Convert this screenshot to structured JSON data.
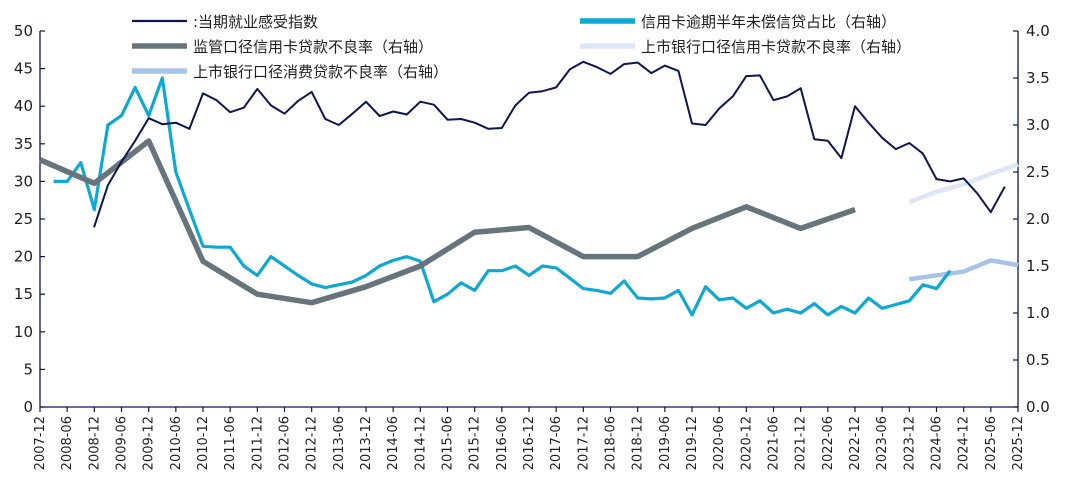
{
  "chart_data": {
    "type": "line",
    "xlabel": "",
    "ylabel": "",
    "y2label": "",
    "x_ticks": [
      "2007-12",
      "2008-06",
      "2008-12",
      "2009-06",
      "2009-12",
      "2010-06",
      "2010-12",
      "2011-06",
      "2011-12",
      "2012-06",
      "2012-12",
      "2013-06",
      "2013-12",
      "2014-06",
      "2014-12",
      "2015-06",
      "2015-12",
      "2016-06",
      "2016-12",
      "2017-06",
      "2017-12",
      "2018-06",
      "2018-12",
      "2019-06",
      "2019-12",
      "2020-06",
      "2020-12",
      "2021-06",
      "2021-12",
      "2022-06",
      "2022-12",
      "2023-06",
      "2023-12",
      "2024-06",
      "2024-12",
      "2025-06",
      "2025-12"
    ],
    "ylim_left": [
      0,
      50
    ],
    "yticks_left": [
      "0",
      "5",
      "10",
      "15",
      "20",
      "25",
      "30",
      "35",
      "40",
      "45",
      "50"
    ],
    "ylim_right": [
      0,
      4
    ],
    "yticks_right": [
      "0.0",
      "0.5",
      "1.0",
      "1.5",
      "2.0",
      "2.5",
      "3.0",
      "3.5",
      "4.0"
    ],
    "grid": false,
    "legend_position": "top",
    "colors": {
      "s1": "#0d1654",
      "s2": "#0fa8d2",
      "s3": "#67747c",
      "s4": "#dee5f7",
      "s5": "#a9c3e6"
    },
    "series": [
      {
        "id": "s1",
        "name": ":当期就业感受指数",
        "axis": "left",
        "x": [
          "2008-12",
          "2009-03",
          "2009-06",
          "2009-09",
          "2009-12",
          "2010-03",
          "2010-06",
          "2010-09",
          "2010-12",
          "2011-03",
          "2011-06",
          "2011-09",
          "2011-12",
          "2012-03",
          "2012-06",
          "2012-09",
          "2012-12",
          "2013-03",
          "2013-06",
          "2013-09",
          "2013-12",
          "2014-03",
          "2014-06",
          "2014-09",
          "2014-12",
          "2015-03",
          "2015-06",
          "2015-09",
          "2015-12",
          "2016-03",
          "2016-06",
          "2016-09",
          "2016-12",
          "2017-03",
          "2017-06",
          "2017-09",
          "2017-12",
          "2018-03",
          "2018-06",
          "2018-09",
          "2018-12",
          "2019-03",
          "2019-06",
          "2019-09",
          "2019-12",
          "2020-03",
          "2020-06",
          "2020-09",
          "2020-12",
          "2021-03",
          "2021-06",
          "2021-09",
          "2021-12",
          "2022-03",
          "2022-06",
          "2022-09",
          "2022-12",
          "2023-03",
          "2023-06",
          "2023-09",
          "2023-12",
          "2024-03",
          "2024-06",
          "2024-09",
          "2024-12",
          "2025-03",
          "2025-06",
          "2025-09",
          "2025-12"
        ],
        "values": [
          24.0,
          29.5,
          32.6,
          35.4,
          38.4,
          37.6,
          37.8,
          37.0,
          41.7,
          40.8,
          39.2,
          39.8,
          42.3,
          40.1,
          39.0,
          40.7,
          41.9,
          38.3,
          37.5,
          39.0,
          40.6,
          38.7,
          39.3,
          38.9,
          40.6,
          40.2,
          38.2,
          38.3,
          37.8,
          37.0,
          37.1,
          40.1,
          41.8,
          42.0,
          42.5,
          44.9,
          45.9,
          45.2,
          44.3,
          45.6,
          45.8,
          44.4,
          45.4,
          44.7,
          37.7,
          37.5,
          39.7,
          41.3,
          44.0,
          44.1,
          40.8,
          41.3,
          42.4,
          35.6,
          35.4,
          33.1,
          40.0,
          37.8,
          35.8,
          34.3,
          35.1,
          33.7,
          30.3,
          30.0,
          30.4,
          28.4,
          25.9,
          29.2,
          null
        ]
      },
      {
        "id": "s2",
        "name": "信用卡逾期半年未偿信贷占比（右轴）",
        "axis": "right",
        "x": [
          "2008-03",
          "2008-06",
          "2008-09",
          "2008-12",
          "2009-03",
          "2009-06",
          "2009-09",
          "2009-12",
          "2010-03",
          "2010-06",
          "2010-09",
          "2010-12",
          "2011-03",
          "2011-06",
          "2011-09",
          "2011-12",
          "2012-03",
          "2012-06",
          "2012-09",
          "2012-12",
          "2013-03",
          "2013-06",
          "2013-09",
          "2013-12",
          "2014-03",
          "2014-06",
          "2014-09",
          "2014-12",
          "2015-03",
          "2015-06",
          "2015-09",
          "2015-12",
          "2016-03",
          "2016-06",
          "2016-09",
          "2016-12",
          "2017-03",
          "2017-06",
          "2017-09",
          "2017-12",
          "2018-03",
          "2018-06",
          "2018-09",
          "2018-12",
          "2019-03",
          "2019-06",
          "2019-09",
          "2019-12",
          "2020-03",
          "2020-06",
          "2020-09",
          "2020-12",
          "2021-03",
          "2021-06",
          "2021-09",
          "2021-12",
          "2022-03",
          "2022-06",
          "2022-09",
          "2022-12",
          "2023-03",
          "2023-06",
          "2023-09",
          "2023-12",
          "2024-03",
          "2024-06",
          "2024-09"
        ],
        "values": [
          2.4,
          2.4,
          2.6,
          2.1,
          3.0,
          3.1,
          3.4,
          3.1,
          3.5,
          2.5,
          2.1,
          1.71,
          1.7,
          1.7,
          1.5,
          1.4,
          1.6,
          1.5,
          1.4,
          1.31,
          1.27,
          1.3,
          1.33,
          1.4,
          1.5,
          1.56,
          1.6,
          1.55,
          1.12,
          1.2,
          1.32,
          1.24,
          1.45,
          1.45,
          1.5,
          1.4,
          1.5,
          1.48,
          1.37,
          1.26,
          1.24,
          1.21,
          1.34,
          1.16,
          1.15,
          1.16,
          1.24,
          0.98,
          1.28,
          1.14,
          1.16,
          1.05,
          1.13,
          1.0,
          1.04,
          1.0,
          1.1,
          0.98,
          1.07,
          1.0,
          1.16,
          1.05,
          1.09,
          1.13,
          1.3,
          1.26,
          1.45
        ]
      },
      {
        "id": "s3",
        "name": "监管口径信用卡贷款不良率（右轴）",
        "axis": "right",
        "x": [
          "2007-12",
          "2008-12",
          "2009-12",
          "2010-12",
          "2011-12",
          "2012-12",
          "2013-12",
          "2014-12",
          "2015-12",
          "2016-12",
          "2017-12",
          "2018-12",
          "2019-12",
          "2020-12",
          "2021-12",
          "2022-12"
        ],
        "values": [
          2.63,
          2.38,
          2.83,
          1.55,
          1.2,
          1.11,
          1.28,
          1.5,
          1.86,
          1.91,
          1.6,
          1.6,
          1.9,
          2.13,
          1.9,
          2.1
        ]
      },
      {
        "id": "s4",
        "name": "上市银行口径信用卡贷款不良率（右轴）",
        "axis": "right",
        "x": [
          "2023-12",
          "2024-06",
          "2024-12",
          "2025-06",
          "2025-12"
        ],
        "values": [
          2.18,
          2.29,
          2.37,
          2.48,
          2.58
        ]
      },
      {
        "id": "s5",
        "name": "上市银行口径消费贷款不良率（右轴）",
        "axis": "right",
        "x": [
          "2023-12",
          "2024-06",
          "2024-12",
          "2025-06",
          "2025-12"
        ],
        "values": [
          1.36,
          1.4,
          1.44,
          1.56,
          1.51
        ]
      }
    ]
  }
}
